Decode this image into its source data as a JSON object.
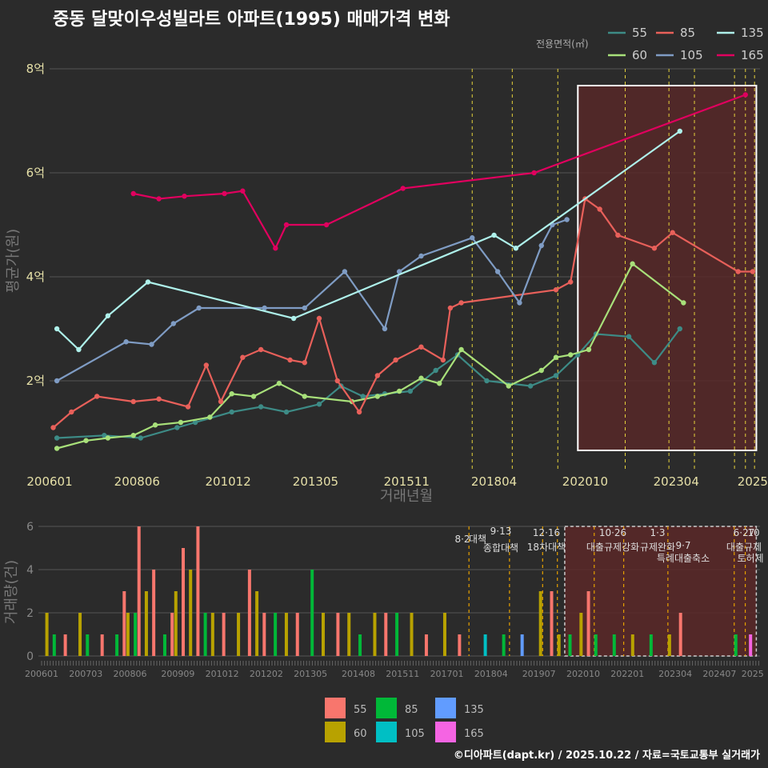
{
  "title": "중동 달맞이우성빌라트 아파트(1995) 매매가격 변화",
  "credit": "©디아파트(dapt.kr) / 2025.10.22 / 자료=국토교통부 실거래가",
  "colors": {
    "s55": "#3d8b86",
    "s60": "#a8e07a",
    "s85": "#e8605a",
    "s105": "#7f9cc4",
    "s135": "#aef0ea",
    "s165": "#e0005e",
    "b55": "#f8766d",
    "b60": "#b8a200",
    "b85": "#00b838",
    "b105": "#00bfc4",
    "b135": "#619cff",
    "b165": "#f564e3",
    "policy": "#e6d23c",
    "region": "#5a2828"
  },
  "chart_data": [
    {
      "type": "line",
      "title": "중동 달맞이우성빌라트 아파트(1995) 매매가격 변화",
      "xlabel": "거래년월",
      "ylabel": "평균가(원)",
      "x_ticks": [
        "200601",
        "200806",
        "201012",
        "201305",
        "201511",
        "201804",
        "202010",
        "202304",
        "2025"
      ],
      "y_ticks": [
        "2억",
        "4억",
        "6억",
        "8억"
      ],
      "ylim": [
        0.5,
        8.0
      ],
      "legend_title": "전용면적(㎡)",
      "legend": [
        "55",
        "60",
        "85",
        "105",
        "135",
        "165"
      ],
      "series": [
        {
          "name": "55",
          "points": [
            [
              2006.2,
              0.9
            ],
            [
              2007.5,
              0.95
            ],
            [
              2008.5,
              0.9
            ],
            [
              2009.5,
              1.1
            ],
            [
              2010.0,
              1.2
            ],
            [
              2011.0,
              1.4
            ],
            [
              2011.8,
              1.5
            ],
            [
              2012.5,
              1.4
            ],
            [
              2013.4,
              1.55
            ],
            [
              2014.0,
              1.9
            ],
            [
              2014.6,
              1.7
            ],
            [
              2015.2,
              1.75
            ],
            [
              2015.9,
              1.8
            ],
            [
              2016.6,
              2.2
            ],
            [
              2017.2,
              2.5
            ],
            [
              2018.0,
              2.0
            ],
            [
              2019.2,
              1.9
            ],
            [
              2019.9,
              2.1
            ],
            [
              2020.5,
              2.5
            ],
            [
              2021.0,
              2.9
            ],
            [
              2021.9,
              2.85
            ],
            [
              2022.6,
              2.35
            ],
            [
              2023.3,
              3.0
            ]
          ]
        },
        {
          "name": "60",
          "points": [
            [
              2006.2,
              0.7
            ],
            [
              2007.0,
              0.85
            ],
            [
              2007.6,
              0.9
            ],
            [
              2008.3,
              0.95
            ],
            [
              2008.9,
              1.15
            ],
            [
              2009.6,
              1.2
            ],
            [
              2010.4,
              1.3
            ],
            [
              2011.0,
              1.75
            ],
            [
              2011.6,
              1.7
            ],
            [
              2012.3,
              1.95
            ],
            [
              2013.0,
              1.7
            ],
            [
              2014.3,
              1.6
            ],
            [
              2015.0,
              1.7
            ],
            [
              2015.6,
              1.8
            ],
            [
              2016.2,
              2.05
            ],
            [
              2016.7,
              1.95
            ],
            [
              2017.3,
              2.6
            ],
            [
              2018.6,
              1.9
            ],
            [
              2019.5,
              2.2
            ],
            [
              2019.9,
              2.45
            ],
            [
              2020.3,
              2.5
            ],
            [
              2020.8,
              2.6
            ],
            [
              2022.0,
              4.25
            ],
            [
              2023.4,
              3.5
            ]
          ]
        },
        {
          "name": "85",
          "points": [
            [
              2006.1,
              1.1
            ],
            [
              2006.6,
              1.4
            ],
            [
              2007.3,
              1.7
            ],
            [
              2008.3,
              1.6
            ],
            [
              2009.0,
              1.65
            ],
            [
              2009.8,
              1.5
            ],
            [
              2010.3,
              2.3
            ],
            [
              2010.7,
              1.6
            ],
            [
              2011.3,
              2.45
            ],
            [
              2011.8,
              2.6
            ],
            [
              2012.6,
              2.4
            ],
            [
              2013.0,
              2.35
            ],
            [
              2013.4,
              3.2
            ],
            [
              2013.9,
              2.0
            ],
            [
              2014.5,
              1.4
            ],
            [
              2015.0,
              2.1
            ],
            [
              2015.5,
              2.4
            ],
            [
              2016.2,
              2.65
            ],
            [
              2016.8,
              2.4
            ],
            [
              2017.0,
              3.4
            ],
            [
              2017.3,
              3.5
            ],
            [
              2019.9,
              3.75
            ],
            [
              2020.3,
              3.9
            ],
            [
              2020.7,
              5.5
            ],
            [
              2021.1,
              5.3
            ],
            [
              2021.6,
              4.8
            ],
            [
              2022.6,
              4.55
            ],
            [
              2023.1,
              4.85
            ],
            [
              2024.9,
              4.1
            ],
            [
              2025.3,
              4.1
            ]
          ]
        },
        {
          "name": "105",
          "points": [
            [
              2006.2,
              2.0
            ],
            [
              2008.1,
              2.75
            ],
            [
              2008.8,
              2.7
            ],
            [
              2009.4,
              3.1
            ],
            [
              2010.1,
              3.4
            ],
            [
              2011.9,
              3.4
            ],
            [
              2013.0,
              3.4
            ],
            [
              2014.1,
              4.1
            ],
            [
              2015.2,
              3.0
            ],
            [
              2015.6,
              4.1
            ],
            [
              2016.2,
              4.4
            ],
            [
              2017.6,
              4.75
            ],
            [
              2018.3,
              4.1
            ],
            [
              2018.9,
              3.5
            ],
            [
              2019.5,
              4.6
            ],
            [
              2019.8,
              5.0
            ],
            [
              2020.2,
              5.1
            ]
          ]
        },
        {
          "name": "135",
          "points": [
            [
              2006.2,
              3.0
            ],
            [
              2006.8,
              2.6
            ],
            [
              2007.6,
              3.25
            ],
            [
              2008.7,
              3.9
            ],
            [
              2012.7,
              3.2
            ],
            [
              2018.2,
              4.8
            ],
            [
              2018.8,
              4.55
            ],
            [
              2023.3,
              6.8
            ]
          ]
        },
        {
          "name": "165",
          "points": [
            [
              2008.3,
              5.6
            ],
            [
              2009.0,
              5.5
            ],
            [
              2009.7,
              5.55
            ],
            [
              2010.8,
              5.6
            ],
            [
              2011.3,
              5.65
            ],
            [
              2012.2,
              4.55
            ],
            [
              2012.5,
              5.0
            ],
            [
              2013.6,
              5.0
            ],
            [
              2015.7,
              5.7
            ],
            [
              2019.3,
              6.0
            ],
            [
              2025.1,
              7.5
            ]
          ]
        }
      ]
    },
    {
      "type": "bar",
      "xlabel": "",
      "ylabel": "거래량(건)",
      "x_ticks": [
        "200601",
        "200703",
        "200806",
        "200909",
        "201012",
        "201202",
        "201305",
        "201408",
        "201511",
        "201701",
        "201804",
        "201907",
        "202010",
        "202201",
        "202304",
        "202407",
        "2025"
      ],
      "y_ticks": [
        "0",
        "2",
        "4",
        "6"
      ],
      "ylim": [
        0,
        6
      ],
      "legend": [
        "55",
        "60",
        "85",
        "105",
        "135",
        "165"
      ],
      "note": "monthly stacked volumes by area; estimated",
      "values": [
        [
          2006.1,
          "60",
          2
        ],
        [
          2006.3,
          "85",
          1
        ],
        [
          2006.6,
          "55",
          1
        ],
        [
          2007.0,
          "60",
          2
        ],
        [
          2007.2,
          "85",
          1
        ],
        [
          2007.6,
          "55",
          1
        ],
        [
          2008.0,
          "85",
          1
        ],
        [
          2008.2,
          "55",
          3
        ],
        [
          2008.3,
          "60",
          2
        ],
        [
          2008.5,
          "85",
          2
        ],
        [
          2008.6,
          "55",
          6
        ],
        [
          2008.8,
          "60",
          3
        ],
        [
          2009.0,
          "55",
          4
        ],
        [
          2009.3,
          "85",
          1
        ],
        [
          2009.5,
          "55",
          2
        ],
        [
          2009.6,
          "60",
          3
        ],
        [
          2009.8,
          "55",
          5
        ],
        [
          2010.0,
          "60",
          4
        ],
        [
          2010.2,
          "55",
          6
        ],
        [
          2010.4,
          "85",
          2
        ],
        [
          2010.6,
          "60",
          2
        ],
        [
          2010.9,
          "55",
          2
        ],
        [
          2011.3,
          "60",
          2
        ],
        [
          2011.6,
          "55",
          4
        ],
        [
          2011.8,
          "60",
          3
        ],
        [
          2012.0,
          "55",
          2
        ],
        [
          2012.3,
          "85",
          2
        ],
        [
          2012.6,
          "60",
          2
        ],
        [
          2012.9,
          "55",
          2
        ],
        [
          2013.3,
          "85",
          4
        ],
        [
          2013.6,
          "60",
          2
        ],
        [
          2014.0,
          "55",
          2
        ],
        [
          2014.3,
          "60",
          2
        ],
        [
          2014.6,
          "85",
          1
        ],
        [
          2015.0,
          "60",
          2
        ],
        [
          2015.3,
          "55",
          2
        ],
        [
          2015.6,
          "85",
          2
        ],
        [
          2016.0,
          "60",
          2
        ],
        [
          2016.4,
          "55",
          1
        ],
        [
          2016.9,
          "60",
          2
        ],
        [
          2017.3,
          "55",
          1
        ],
        [
          2018.0,
          "105",
          1
        ],
        [
          2018.5,
          "85",
          1
        ],
        [
          2019.0,
          "135",
          1
        ],
        [
          2019.5,
          "60",
          3
        ],
        [
          2019.8,
          "55",
          3
        ],
        [
          2020.0,
          "60",
          1
        ],
        [
          2020.3,
          "85",
          1
        ],
        [
          2020.6,
          "60",
          2
        ],
        [
          2020.8,
          "55",
          3
        ],
        [
          2021.0,
          "85",
          1
        ],
        [
          2021.5,
          "85",
          1
        ],
        [
          2022.0,
          "60",
          1
        ],
        [
          2022.5,
          "85",
          1
        ],
        [
          2023.0,
          "60",
          1
        ],
        [
          2023.3,
          "55",
          2
        ],
        [
          2024.8,
          "85",
          1
        ],
        [
          2025.2,
          "165",
          1
        ]
      ],
      "annotations": [
        {
          "date": "8·2",
          "label": "대책"
        },
        {
          "date": "9·13",
          "label": "종합대책"
        },
        {
          "date": "12·16",
          "label": "18차대책"
        },
        {
          "date": "10·26",
          "label": "대출규제강화"
        },
        {
          "date": "1·3",
          "label": "규제완화"
        },
        {
          "date": "9·7",
          "label": "특례대출축소"
        },
        {
          "date": "6·27",
          "label": "대출규제"
        },
        {
          "date": "10",
          "label": "토허제"
        }
      ]
    }
  ]
}
